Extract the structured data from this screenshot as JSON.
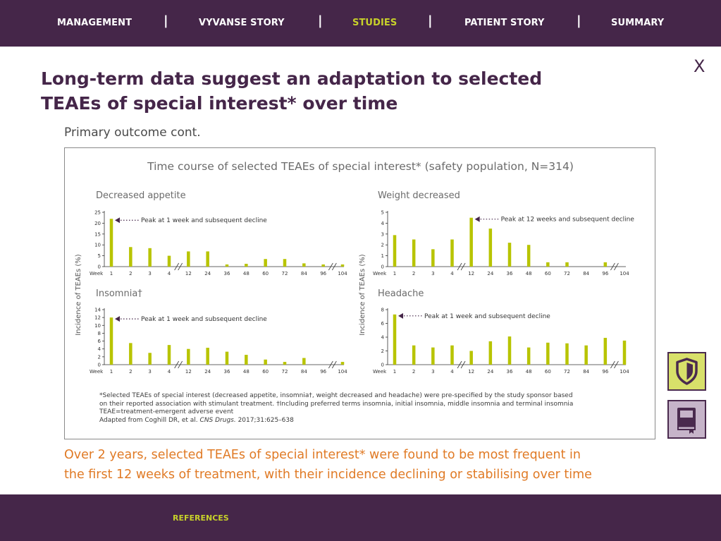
{
  "nav": {
    "items": [
      "MANAGEMENT",
      "VYVANSE STORY",
      "STUDIES",
      "PATIENT STORY",
      "SUMMARY"
    ],
    "active": "STUDIES",
    "separator": "|"
  },
  "close_label": "X",
  "page": {
    "title_line1": "Long-term data suggest an adaptation to selected",
    "title_line2": "TEAEs of special interest* over time",
    "subtitle": "Primary outcome cont."
  },
  "figure": {
    "title": "Time course of selected TEAEs of special interest* (safety population, N=314)",
    "ylabel": "Incidence of TEAEs (%)",
    "x_axis_label": "Week",
    "footnote_line1": "*Selected TEAEs of special interest (decreased appetite, insomnia†, weight decreased and headache) were pre-specified by the study sponsor based",
    "footnote_line2": "on their reported association with stimulant treatment. †Including preferred terms insomnia, initial insomnia, middle insomnia and terminal insomnia",
    "footnote_line3": "TEAE=treatment-emergent adverse event",
    "citation_prefix": "Adapted from Coghill DR, et al. ",
    "citation_journal": "CNS Drugs.",
    "citation_suffix": " 2017;31:625–638"
  },
  "colors": {
    "brand_purple": "#452649",
    "accent_lime": "#c7d12a",
    "bar_color": "#b8c400",
    "orange_text": "#e07a25"
  },
  "chart_data": [
    {
      "type": "bar",
      "title": "Decreased appetite",
      "categories": [
        "1",
        "2",
        "3",
        "4",
        "12",
        "24",
        "36",
        "48",
        "60",
        "72",
        "84",
        "96",
        "104"
      ],
      "values": [
        22,
        9,
        8.5,
        5,
        7,
        7,
        1,
        1.3,
        3.5,
        3.5,
        1.5,
        1,
        1
      ],
      "ylim": [
        0,
        25
      ],
      "yticks": [
        0,
        5,
        10,
        15,
        20,
        25
      ],
      "annotation": "Peak at 1 week and subsequent decline",
      "annotation_index": 0
    },
    {
      "type": "bar",
      "title": "Weight decreased",
      "categories": [
        "1",
        "2",
        "3",
        "4",
        "12",
        "24",
        "36",
        "48",
        "60",
        "72",
        "84",
        "96",
        "104"
      ],
      "values": [
        2.9,
        2.5,
        1.6,
        2.5,
        4.5,
        3.5,
        2.2,
        2,
        0.4,
        0.4,
        0,
        0.4,
        0
      ],
      "ylim": [
        0,
        5
      ],
      "yticks": [
        0,
        1,
        2,
        3,
        4,
        5
      ],
      "annotation": "Peak at 12 weeks and subsequent decline",
      "annotation_index": 4
    },
    {
      "type": "bar",
      "title": "Insomnia†",
      "categories": [
        "1",
        "2",
        "3",
        "4",
        "12",
        "24",
        "36",
        "48",
        "60",
        "72",
        "84",
        "96",
        "104"
      ],
      "values": [
        12,
        5.5,
        3,
        5,
        4,
        4.3,
        3.3,
        2.5,
        1.3,
        0.7,
        1.7,
        0,
        0.7
      ],
      "ylim": [
        0,
        14
      ],
      "yticks": [
        0,
        2,
        4,
        6,
        8,
        10,
        12,
        14
      ],
      "annotation": "Peak at 1 week and subsequent decline",
      "annotation_index": 0
    },
    {
      "type": "bar",
      "title": "Headache",
      "categories": [
        "1",
        "2",
        "3",
        "4",
        "12",
        "24",
        "36",
        "48",
        "60",
        "72",
        "84",
        "96",
        "104"
      ],
      "values": [
        7.3,
        2.8,
        2.5,
        2.8,
        2,
        3.4,
        4.1,
        2.5,
        3.2,
        3.1,
        2.8,
        3.9,
        3.5
      ],
      "ylim": [
        0,
        8
      ],
      "yticks": [
        0,
        2,
        4,
        6,
        8
      ],
      "annotation": "Peak at 1 week and subsequent decline",
      "annotation_index": 0
    }
  ],
  "conclusion": {
    "line1": "Over 2 years, selected TEAEs of special interest* were found to be most frequent in",
    "line2": "the first 12 weeks of treatment, with their incidence declining or stabilising over time"
  },
  "sidebar": {
    "buttons": [
      {
        "icon": "shield-icon"
      },
      {
        "icon": "book-icon"
      }
    ]
  },
  "footer": {
    "references_label": "REFERENCES"
  }
}
